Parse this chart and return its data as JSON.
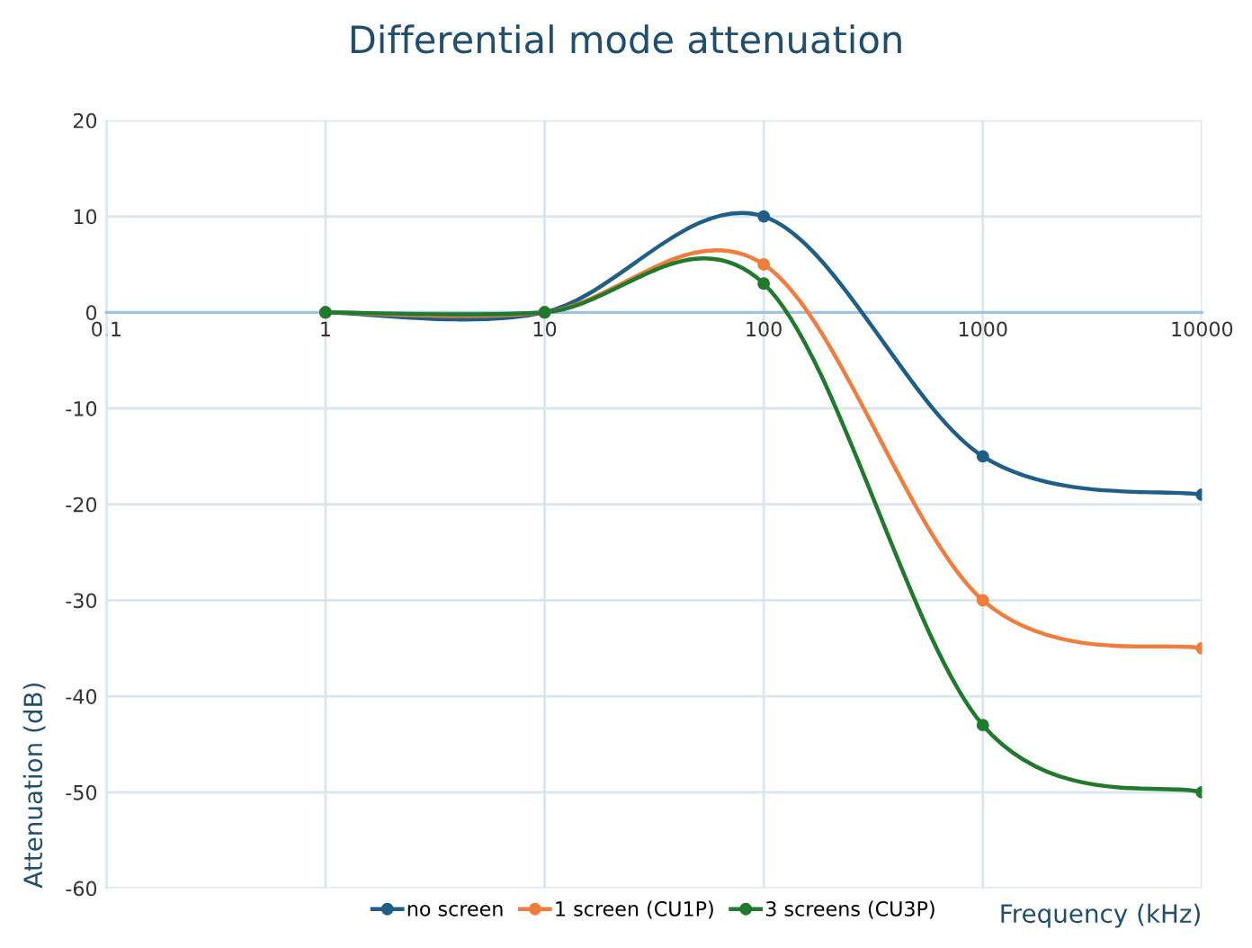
{
  "chart_data": {
    "type": "line",
    "title": "Differential mode attenuation",
    "xlabel": "Frequency (kHz)",
    "ylabel": "Attenuation (dB)",
    "x": [
      1,
      10,
      100,
      1000,
      10000
    ],
    "series": [
      {
        "name": "no screen",
        "color": "#1f5f87",
        "values": [
          0,
          0,
          10,
          -15,
          -19
        ]
      },
      {
        "name": "1 screen (CU1P)",
        "color": "#f07d3c",
        "values": [
          0,
          0,
          5,
          -30,
          -35
        ]
      },
      {
        "name": "3 screens (CU3P)",
        "color": "#1f7a2c",
        "values": [
          0,
          0,
          3,
          -43,
          -50
        ]
      }
    ],
    "log": "x",
    "xlim": [
      0.1,
      10000
    ],
    "xticks": [
      0.1,
      1,
      10,
      100,
      1000,
      10000
    ],
    "ylim": [
      -60,
      20
    ],
    "yticks": [
      -60,
      -50,
      -40,
      -30,
      -20,
      -10,
      0,
      10,
      20
    ],
    "grid": true,
    "legend": "bottom",
    "marker": "circle",
    "line_style": "solid"
  }
}
